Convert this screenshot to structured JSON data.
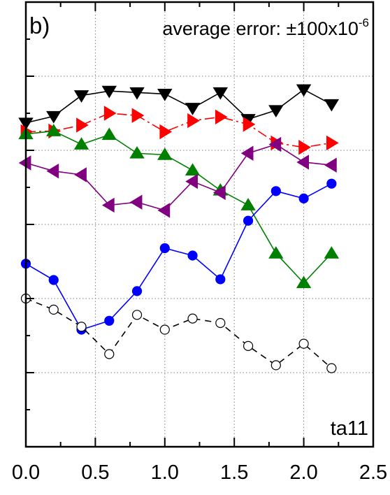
{
  "chart_data": {
    "type": "line",
    "panel_label": "b)",
    "annotation": {
      "text": "average error: ±100x10",
      "superscript": "-6"
    },
    "corner_label": "ta11",
    "xlim": [
      0,
      2.5
    ],
    "ylim": [
      0,
      6
    ],
    "grid": true,
    "x_ticks": [
      {
        "value": 0.0,
        "label": "0.0"
      },
      {
        "value": 0.5,
        "label": "0.5"
      },
      {
        "value": 1.0,
        "label": "1.0"
      },
      {
        "value": 1.5,
        "label": "1.5"
      },
      {
        "value": 2.0,
        "label": "2.0"
      },
      {
        "value": 2.5,
        "label": "2.5"
      }
    ],
    "y_ticks": [
      0,
      1,
      2,
      3,
      4,
      5,
      6
    ],
    "x": [
      0.0,
      0.2,
      0.4,
      0.6,
      0.8,
      1.0,
      1.2,
      1.4,
      1.6,
      1.8,
      2.0,
      2.2
    ],
    "series": [
      {
        "marker": "triangle-down",
        "color": "#000000",
        "fill": "#000000",
        "dash": "solid",
        "values": [
          4.37,
          4.46,
          4.74,
          4.8,
          4.78,
          4.76,
          4.57,
          4.78,
          4.42,
          4.54,
          4.82,
          4.62
        ]
      },
      {
        "marker": "triangle-right",
        "color": "#ff0000",
        "fill": "#ff0000",
        "dash": "dashdot",
        "values": [
          4.25,
          4.26,
          4.34,
          4.5,
          4.47,
          4.25,
          4.4,
          4.45,
          4.35,
          4.1,
          4.04,
          4.1
        ]
      },
      {
        "marker": "triangle-up",
        "color": "#008000",
        "fill": "#008000",
        "dash": "solid",
        "values": [
          4.22,
          4.26,
          4.08,
          4.21,
          3.96,
          3.94,
          3.73,
          3.46,
          3.26,
          2.61,
          2.21,
          2.61
        ]
      },
      {
        "marker": "triangle-left",
        "color": "#800080",
        "fill": "#800080",
        "dash": "solid",
        "values": [
          3.83,
          3.72,
          3.67,
          3.26,
          3.3,
          3.19,
          3.58,
          3.43,
          3.96,
          4.08,
          3.84,
          3.8
        ]
      },
      {
        "marker": "circle",
        "color": "#0000ff",
        "fill": "#0000ff",
        "dash": "solid",
        "values": [
          2.47,
          2.25,
          1.58,
          1.7,
          2.1,
          2.68,
          2.58,
          2.26,
          3.05,
          3.45,
          3.35,
          3.55
        ]
      },
      {
        "marker": "circle",
        "color": "#000000",
        "fill": "#ffffff",
        "dash": "dashed",
        "values": [
          2.0,
          1.85,
          1.62,
          1.25,
          1.78,
          1.58,
          1.73,
          1.67,
          1.36,
          1.1,
          1.39,
          1.06
        ]
      }
    ]
  }
}
